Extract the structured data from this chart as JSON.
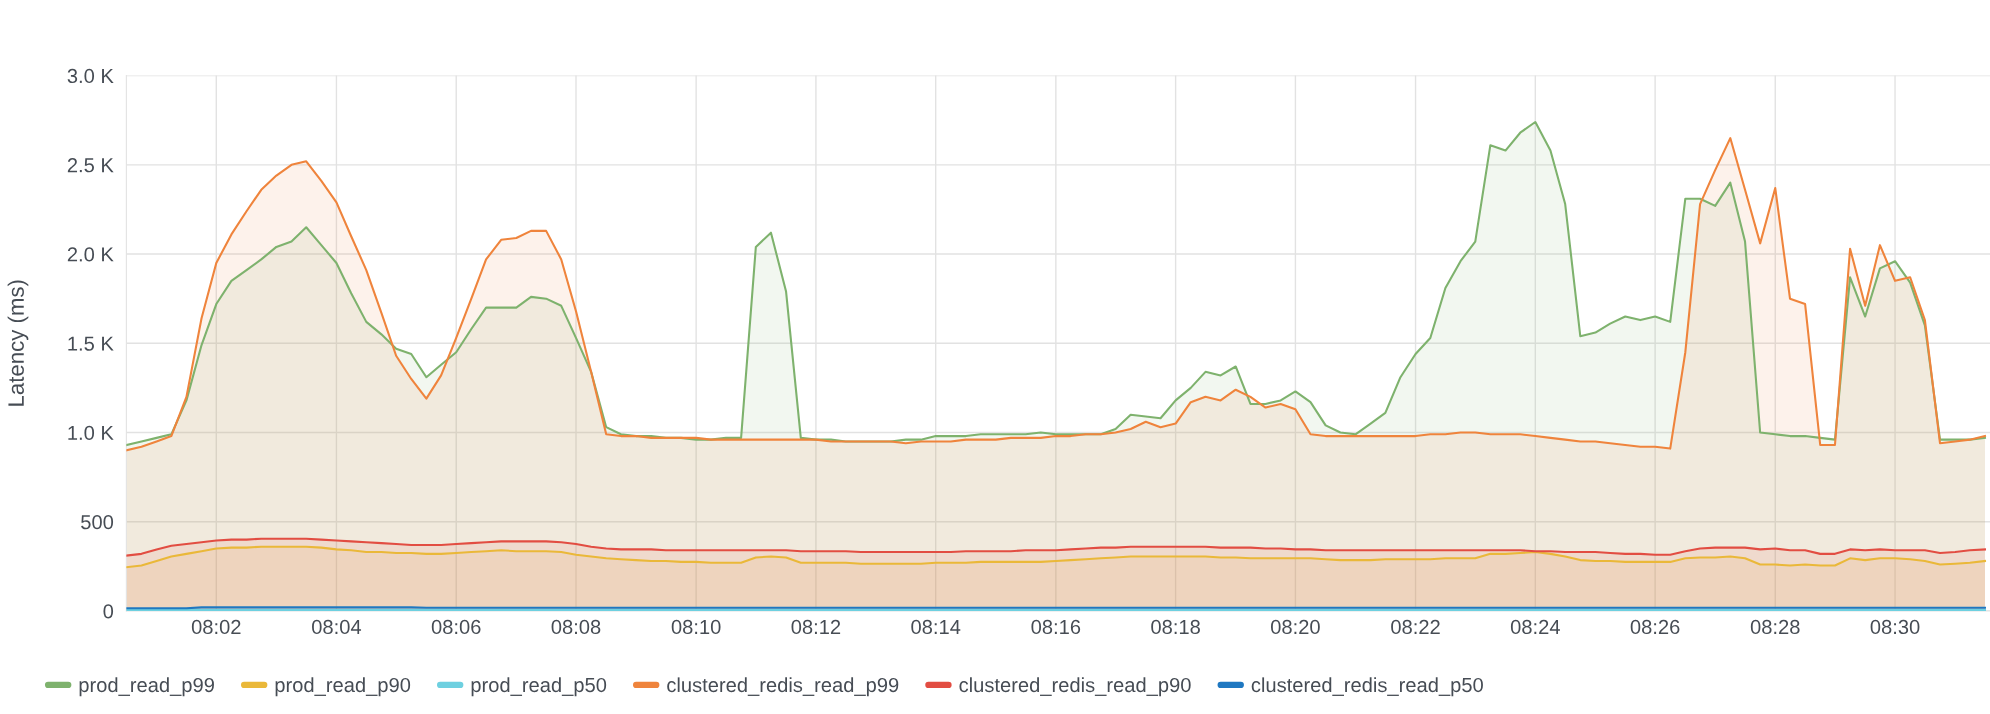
{
  "chart_data": {
    "type": "area",
    "ylabel": "Latency (ms)",
    "x": [
      8.0083,
      8.0125,
      8.0167,
      8.0208,
      8.025,
      8.0292,
      8.0333,
      8.0375,
      8.0417,
      8.0458,
      8.05,
      8.0542,
      8.0583,
      8.0625,
      8.0667,
      8.0708,
      8.075,
      8.0792,
      8.0833,
      8.0875,
      8.0917,
      8.0958,
      8.1,
      8.1042,
      8.1083,
      8.1125,
      8.1167,
      8.1208,
      8.125,
      8.1292,
      8.1333,
      8.1375,
      8.1417,
      8.1458,
      8.15,
      8.1542,
      8.1583,
      8.1625,
      8.1667,
      8.1708,
      8.175,
      8.1792,
      8.1833,
      8.1875,
      8.1917,
      8.1958,
      8.2,
      8.2042,
      8.2083,
      8.2125,
      8.2167,
      8.2208,
      8.225,
      8.2292,
      8.2333,
      8.2375,
      8.2417,
      8.2458,
      8.25,
      8.2542,
      8.2583,
      8.2625,
      8.2667,
      8.2708,
      8.275,
      8.2792,
      8.2833,
      8.2875,
      8.2917,
      8.2958,
      8.3,
      8.3042,
      8.3083,
      8.3125,
      8.3167,
      8.3208,
      8.325,
      8.3292,
      8.3333,
      8.3375,
      8.3417,
      8.3458,
      8.35,
      8.3542,
      8.3583,
      8.3625,
      8.3667,
      8.3708,
      8.375,
      8.3792,
      8.3833,
      8.3875,
      8.3917,
      8.3958,
      8.4,
      8.4042,
      8.4083,
      8.4125,
      8.4167,
      8.4208,
      8.425,
      8.4292,
      8.4333,
      8.4375,
      8.4417,
      8.4458,
      8.45,
      8.4542,
      8.4583,
      8.4625,
      8.4667,
      8.4708,
      8.475,
      8.4792,
      8.4833,
      8.4875,
      8.4917,
      8.4958,
      8.5,
      8.5042,
      8.5083,
      8.5125,
      8.5167,
      8.5208,
      8.525
    ],
    "xlim": [
      8.0083,
      8.5264
    ],
    "xticks": [
      {
        "value": 8.0333,
        "label": "08:02"
      },
      {
        "value": 8.0667,
        "label": "08:04"
      },
      {
        "value": 8.1,
        "label": "08:06"
      },
      {
        "value": 8.1333,
        "label": "08:08"
      },
      {
        "value": 8.1667,
        "label": "08:10"
      },
      {
        "value": 8.2,
        "label": "08:12"
      },
      {
        "value": 8.2333,
        "label": "08:14"
      },
      {
        "value": 8.2667,
        "label": "08:16"
      },
      {
        "value": 8.3,
        "label": "08:18"
      },
      {
        "value": 8.3333,
        "label": "08:20"
      },
      {
        "value": 8.3667,
        "label": "08:22"
      },
      {
        "value": 8.4,
        "label": "08:24"
      },
      {
        "value": 8.4333,
        "label": "08:26"
      },
      {
        "value": 8.4667,
        "label": "08:28"
      },
      {
        "value": 8.5,
        "label": "08:30"
      }
    ],
    "ylim": [
      0,
      3000
    ],
    "yticks": [
      0,
      500,
      {
        "value": 1000,
        "label": "1.0 K"
      },
      {
        "value": 1500,
        "label": "1.5 K"
      },
      {
        "value": 2000,
        "label": "2.0 K"
      },
      {
        "value": 2500,
        "label": "2.5 K"
      },
      {
        "value": 3000,
        "label": "3.0 K"
      }
    ],
    "grid": true,
    "legend": "bottom",
    "series": [
      {
        "name": "prod_read_p99",
        "color": "#7eb26d",
        "values": [
          930,
          950,
          970,
          990,
          1180,
          1490,
          1720,
          1850,
          1910,
          1970,
          2040,
          2070,
          2150,
          2050,
          1950,
          1780,
          1620,
          1550,
          1470,
          1440,
          1310,
          1380,
          1450,
          1580,
          1700,
          1700,
          1700,
          1760,
          1750,
          1710,
          1530,
          1340,
          1030,
          990,
          980,
          980,
          970,
          970,
          960,
          960,
          970,
          970,
          2040,
          2120,
          1790,
          970,
          960,
          960,
          950,
          950,
          950,
          950,
          960,
          960,
          980,
          980,
          980,
          990,
          990,
          990,
          990,
          1000,
          990,
          990,
          990,
          990,
          1020,
          1100,
          1090,
          1080,
          1180,
          1250,
          1340,
          1320,
          1370,
          1160,
          1160,
          1180,
          1230,
          1170,
          1040,
          1000,
          990,
          1050,
          1110,
          1310,
          1440,
          1530,
          1810,
          1960,
          2070,
          2610,
          2580,
          2680,
          2740,
          2580,
          2280,
          1540,
          1560,
          1610,
          1650,
          1630,
          1650,
          1620,
          2310,
          2310,
          2270,
          2400,
          2070,
          1000,
          990,
          980,
          980,
          970,
          960,
          1870,
          1650,
          1920,
          1960,
          1840,
          1600,
          960,
          960,
          960,
          970
        ]
      },
      {
        "name": "prod_read_p90",
        "color": "#eab839",
        "values": [
          245,
          255,
          280,
          305,
          320,
          335,
          350,
          355,
          355,
          360,
          360,
          360,
          360,
          355,
          345,
          340,
          330,
          330,
          325,
          325,
          320,
          320,
          325,
          330,
          335,
          340,
          335,
          335,
          335,
          330,
          315,
          305,
          295,
          290,
          285,
          280,
          280,
          275,
          275,
          270,
          270,
          270,
          300,
          305,
          300,
          270,
          270,
          270,
          270,
          265,
          265,
          265,
          265,
          265,
          270,
          270,
          270,
          275,
          275,
          275,
          275,
          275,
          280,
          285,
          290,
          295,
          300,
          305,
          305,
          305,
          305,
          305,
          305,
          300,
          300,
          295,
          295,
          295,
          295,
          295,
          290,
          285,
          285,
          285,
          290,
          290,
          290,
          290,
          295,
          295,
          295,
          320,
          320,
          325,
          330,
          320,
          305,
          285,
          280,
          280,
          275,
          275,
          275,
          275,
          295,
          300,
          300,
          305,
          295,
          260,
          260,
          255,
          260,
          255,
          255,
          295,
          285,
          295,
          295,
          290,
          280,
          260,
          265,
          270,
          280
        ]
      },
      {
        "name": "prod_read_p50",
        "color": "#6ed0e0",
        "values": [
          5,
          5,
          5,
          5,
          5,
          5,
          5,
          5,
          5,
          5,
          5,
          5,
          5,
          5,
          5,
          5,
          5,
          5,
          5,
          5,
          5,
          5,
          5,
          5,
          5,
          5,
          5,
          5,
          5,
          5,
          5,
          5,
          5,
          5,
          5,
          5,
          5,
          5,
          5,
          5,
          5,
          5,
          5,
          5,
          5,
          5,
          5,
          5,
          5,
          5,
          5,
          5,
          5,
          5,
          5,
          5,
          5,
          5,
          5,
          5,
          5,
          5,
          5,
          5,
          5,
          5,
          5,
          5,
          5,
          5,
          5,
          5,
          5,
          5,
          5,
          5,
          5,
          5,
          5,
          5,
          5,
          5,
          5,
          5,
          5,
          5,
          5,
          5,
          5,
          5,
          5,
          5,
          5,
          5,
          5,
          5,
          5,
          5,
          5,
          5,
          5,
          5,
          5,
          5,
          5,
          5,
          5,
          5,
          5,
          5,
          5,
          5,
          5,
          5,
          5,
          5,
          5,
          5,
          5,
          5,
          5,
          5,
          5,
          5,
          5
        ]
      },
      {
        "name": "clustered_redis_read_p99",
        "color": "#ef843c",
        "values": [
          900,
          920,
          950,
          980,
          1200,
          1640,
          1950,
          2110,
          2240,
          2360,
          2440,
          2500,
          2520,
          2410,
          2290,
          2100,
          1910,
          1670,
          1430,
          1300,
          1190,
          1320,
          1530,
          1750,
          1970,
          2080,
          2090,
          2130,
          2130,
          1970,
          1680,
          1340,
          990,
          980,
          980,
          970,
          970,
          970,
          970,
          960,
          960,
          960,
          960,
          960,
          960,
          960,
          960,
          950,
          950,
          950,
          950,
          950,
          940,
          950,
          950,
          950,
          960,
          960,
          960,
          970,
          970,
          970,
          980,
          980,
          990,
          990,
          1000,
          1020,
          1060,
          1030,
          1050,
          1170,
          1200,
          1180,
          1240,
          1200,
          1140,
          1160,
          1130,
          990,
          980,
          980,
          980,
          980,
          980,
          980,
          980,
          990,
          990,
          1000,
          1000,
          990,
          990,
          990,
          980,
          970,
          960,
          950,
          950,
          940,
          930,
          920,
          920,
          910,
          1450,
          2280,
          2470,
          2650,
          2360,
          2060,
          2370,
          1750,
          1720,
          930,
          930,
          2030,
          1710,
          2050,
          1850,
          1870,
          1630,
          940,
          950,
          960,
          980
        ]
      },
      {
        "name": "clustered_redis_read_p90",
        "color": "#e24d42",
        "values": [
          310,
          320,
          345,
          365,
          375,
          385,
          395,
          400,
          400,
          405,
          405,
          405,
          405,
          400,
          395,
          390,
          385,
          380,
          375,
          370,
          370,
          370,
          375,
          380,
          385,
          390,
          390,
          390,
          390,
          385,
          375,
          360,
          350,
          345,
          345,
          345,
          340,
          340,
          340,
          340,
          340,
          340,
          340,
          340,
          340,
          335,
          335,
          335,
          335,
          330,
          330,
          330,
          330,
          330,
          330,
          330,
          335,
          335,
          335,
          335,
          340,
          340,
          340,
          345,
          350,
          355,
          355,
          360,
          360,
          360,
          360,
          360,
          360,
          355,
          355,
          355,
          350,
          350,
          345,
          345,
          340,
          340,
          340,
          340,
          340,
          340,
          340,
          340,
          340,
          340,
          340,
          340,
          340,
          340,
          335,
          335,
          330,
          330,
          330,
          325,
          320,
          320,
          315,
          315,
          335,
          350,
          355,
          355,
          355,
          345,
          350,
          340,
          340,
          320,
          320,
          345,
          340,
          345,
          340,
          340,
          340,
          325,
          330,
          340,
          345
        ]
      },
      {
        "name": "clustered_redis_read_p50",
        "color": "#1f78c1",
        "values": [
          15,
          15,
          15,
          15,
          15,
          20,
          20,
          20,
          20,
          20,
          20,
          20,
          20,
          20,
          20,
          20,
          20,
          20,
          20,
          20,
          18,
          18,
          18,
          18,
          18,
          18,
          18,
          18,
          18,
          18,
          18,
          18,
          18,
          18,
          18,
          18,
          18,
          18,
          18,
          18,
          18,
          18,
          18,
          18,
          18,
          18,
          18,
          18,
          18,
          18,
          18,
          18,
          18,
          18,
          18,
          18,
          18,
          18,
          18,
          18,
          18,
          18,
          18,
          18,
          18,
          18,
          18,
          18,
          18,
          18,
          18,
          18,
          18,
          18,
          18,
          18,
          18,
          18,
          18,
          18,
          18,
          18,
          18,
          18,
          18,
          18,
          18,
          18,
          18,
          18,
          18,
          18,
          18,
          18,
          18,
          18,
          18,
          18,
          18,
          18,
          18,
          18,
          18,
          18,
          18,
          18,
          18,
          18,
          18,
          18,
          18,
          18,
          18,
          18,
          18,
          18,
          18,
          18,
          18,
          18,
          18,
          18,
          18,
          18,
          18
        ]
      }
    ]
  }
}
